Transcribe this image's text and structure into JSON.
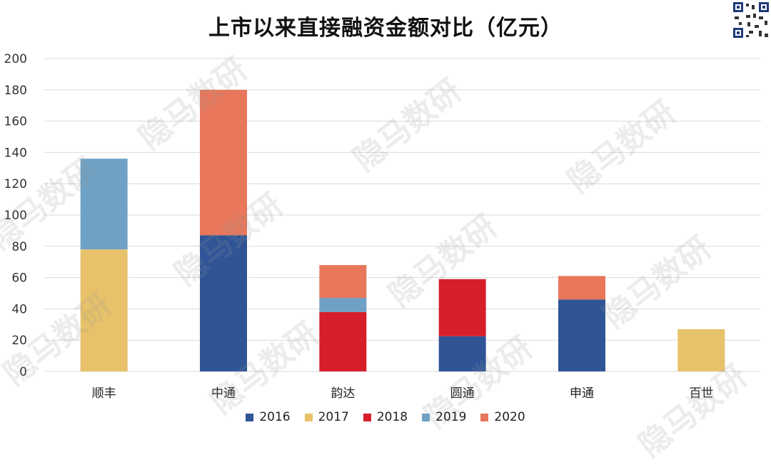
{
  "chart_data": {
    "type": "bar",
    "stacked": true,
    "title": "上市以来直接融资金额对比（亿元）",
    "categories": [
      "顺丰",
      "中通",
      "韵达",
      "圆通",
      "申通",
      "百世"
    ],
    "ylim": [
      0,
      200
    ],
    "yticks": [
      0,
      20,
      40,
      60,
      80,
      100,
      120,
      140,
      160,
      180,
      200
    ],
    "grid": true,
    "legend_position": "bottom",
    "series": [
      {
        "name": "2016",
        "color": "#2f5597",
        "values": [
          0,
          87,
          0,
          22.5,
          46,
          0
        ]
      },
      {
        "name": "2017",
        "color": "#e7c26a",
        "values": [
          78,
          0,
          0,
          0,
          0,
          27
        ]
      },
      {
        "name": "2018",
        "color": "#d61f2b",
        "values": [
          0,
          0,
          38,
          36.5,
          0,
          0
        ]
      },
      {
        "name": "2019",
        "color": "#6fa1c4",
        "values": [
          58,
          0,
          9,
          0,
          0,
          0
        ]
      },
      {
        "name": "2020",
        "color": "#e8775b",
        "values": [
          0,
          93,
          21,
          0,
          15,
          0
        ]
      }
    ]
  },
  "watermark": "隐马数研"
}
